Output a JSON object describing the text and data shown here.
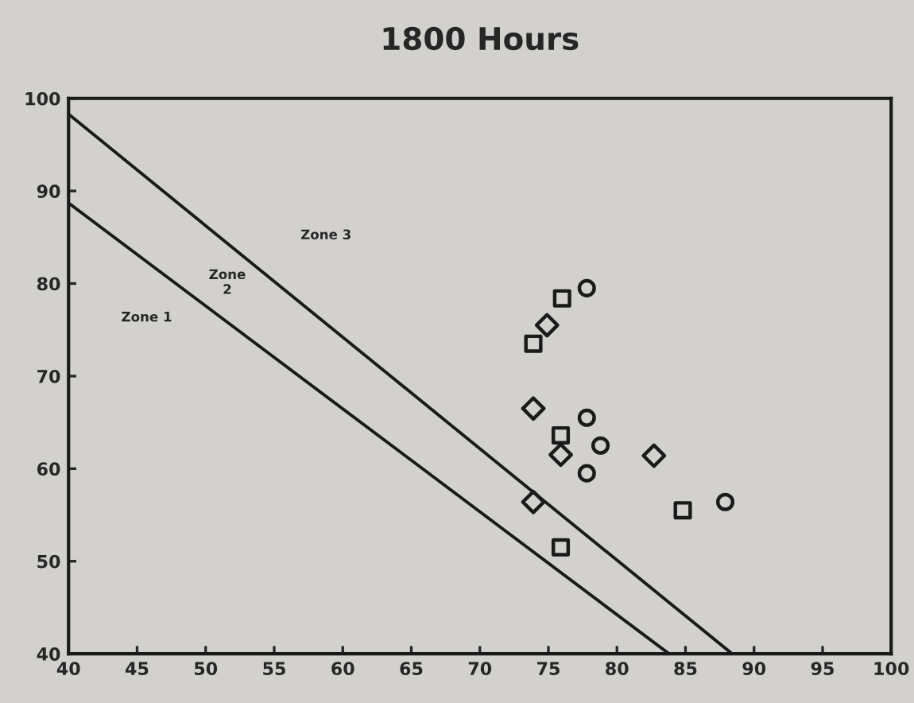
{
  "chart_data": {
    "type": "scatter",
    "title": "1800 Hours",
    "series": [
      {
        "type": "line",
        "color": "#1a1a1a",
        "x": [
          40,
          88.4
        ],
        "values": [
          98.3,
          40
        ],
        "marker": "none"
      },
      {
        "type": "line",
        "color": "#1a1a1a",
        "x": [
          40,
          83.8
        ],
        "values": [
          88.7,
          40
        ],
        "marker": "none"
      },
      {
        "color": "#1a1a1a",
        "marker": "square",
        "x": [
          76.0,
          73.9,
          75.9,
          84.8,
          75.9
        ],
        "values": [
          78.4,
          73.5,
          63.6,
          55.5,
          51.5
        ]
      },
      {
        "color": "#1a1a1a",
        "marker": "diamond",
        "x": [
          74.9,
          73.9,
          75.9,
          82.7,
          73.9
        ],
        "values": [
          75.5,
          66.5,
          61.5,
          61.4,
          56.4
        ]
      },
      {
        "color": "#1a1a1a",
        "marker": "circle",
        "x": [
          77.8,
          77.8,
          78.8,
          77.8,
          87.9
        ],
        "values": [
          79.5,
          65.5,
          62.5,
          59.5,
          56.4
        ]
      }
    ],
    "annotations": [
      "Zone 1",
      "Zone\n2",
      "Zone 3"
    ],
    "xlim": [
      40,
      100
    ],
    "xticks": [
      40,
      45,
      50,
      55,
      60,
      65,
      70,
      75,
      80,
      85,
      90,
      95,
      100
    ],
    "ylim": [
      40,
      100
    ],
    "yticks": [
      40,
      50,
      60,
      70,
      80,
      90,
      100
    ],
    "grid": false,
    "legend": false
  }
}
